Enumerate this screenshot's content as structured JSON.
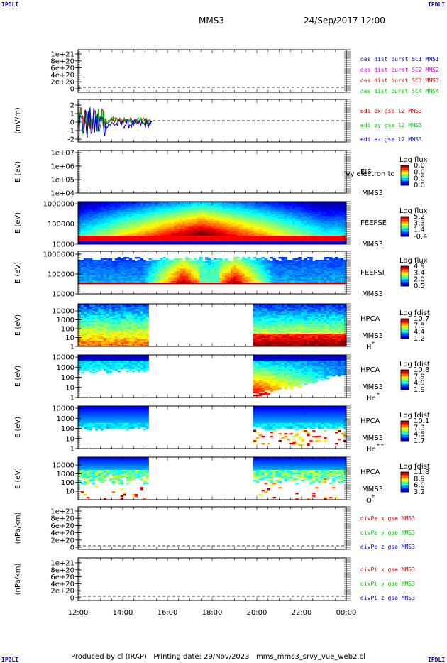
{
  "corner_label": "IPDLI",
  "header": {
    "spacecraft": "MMS3",
    "datetime": "24/Sep/2017 12:00"
  },
  "footer": {
    "produced_by": "Produced by cl (IRAP)",
    "printing_date": "Printing date: 29/Nov/2023",
    "script_name": "mms_mms3_srvy_vue_web2.cl"
  },
  "colors": {
    "red": "#cc0000",
    "magenta": "#cc00cc",
    "green": "#00cc00",
    "blue": "#0000cc",
    "frame": "#000000"
  },
  "chart_data": [
    {
      "type": "line",
      "id": "des-dist",
      "ytick_labels": [
        "1e+21",
        "8e+20",
        "6e+20",
        "4e+20",
        "2e+20",
        "0"
      ],
      "legend": [
        {
          "name": "des dist burst SC1 MMS1",
          "color": "#0000cc"
        },
        {
          "name": "des dist burst SC2 MMS2",
          "color": "#cc00cc"
        },
        {
          "name": "des dist burst SC3 MMS3",
          "color": "#cc0000"
        },
        {
          "name": "des dist burst SC4 MMS4",
          "color": "#00cc00"
        }
      ]
    },
    {
      "type": "line",
      "id": "edi",
      "ylabel": "(mV/m)",
      "ytick_labels": [
        "2",
        "1",
        "0",
        "-1",
        "-2"
      ],
      "ylim": [
        -2.5,
        2.5
      ],
      "legend": [
        {
          "name": "edi ex gse l2 MMS3",
          "color": "#cc0000"
        },
        {
          "name": "edi ey gse l2 MMS3",
          "color": "#00cc00"
        },
        {
          "name": "edi ez gse l2 MMS3",
          "color": "#0000cc"
        }
      ],
      "active_range_hours": [
        12.0,
        15.3
      ]
    },
    {
      "type": "heatmap",
      "id": "eis",
      "ylabel": "E (eV)",
      "ytick_labels": [
        "1e+07",
        "1e+06",
        "1e+05",
        "1e+04"
      ],
      "side_labels": [
        "EIS",
        "MMS3"
      ],
      "overlay_text": "l'vy electron to",
      "colorbar_title": "Log flux",
      "colorbar_ticks": [
        "0.0",
        "0.0",
        "0.0",
        "0.0"
      ],
      "model": "empty"
    },
    {
      "type": "heatmap",
      "id": "feepse",
      "ylabel": "E (eV)",
      "ytick_labels": [
        "1000000",
        "100000",
        "10000"
      ],
      "side_labels": [
        "FEEPSE",
        "MMS3"
      ],
      "colorbar_title": "Log flux",
      "colorbar_ticks": [
        "5.2",
        "3.3",
        "1.4",
        "-0.4"
      ],
      "model": "feepse"
    },
    {
      "type": "heatmap",
      "id": "feepsi",
      "ylabel": "E (eV)",
      "ytick_labels": [
        "1000000",
        "100000",
        "10000"
      ],
      "side_labels": [
        "FEEPSI",
        "MMS3"
      ],
      "colorbar_title": "Log flux",
      "colorbar_ticks": [
        "4.9",
        "3.4",
        "2.0",
        "0.5"
      ],
      "model": "feepsi"
    },
    {
      "type": "heatmap",
      "id": "hpca-h",
      "ylabel": "E (eV)",
      "ytick_labels": [
        "10000",
        "1000",
        "100",
        "10",
        "1"
      ],
      "side_labels": [
        "HPCA",
        "MMS3"
      ],
      "species": "H",
      "species_charge": "+",
      "colorbar_title": "Log fdist",
      "colorbar_ticks": [
        "10.7",
        "7.5",
        "4.4",
        "1.2"
      ],
      "data_windows_hours": [
        [
          12.0,
          15.2
        ],
        [
          19.8,
          24.0
        ]
      ],
      "model": "hpca-h"
    },
    {
      "type": "heatmap",
      "id": "hpca-he",
      "ylabel": "E (eV)",
      "ytick_labels": [
        "10000",
        "1000",
        "100",
        "10",
        "1"
      ],
      "side_labels": [
        "HPCA",
        "MMS3"
      ],
      "species": "He",
      "species_charge": "+",
      "colorbar_title": "Log fdist",
      "colorbar_ticks": [
        "10.8",
        "7.9",
        "4.9",
        "1.9"
      ],
      "data_windows_hours": [
        [
          12.0,
          15.2
        ],
        [
          19.8,
          24.0
        ]
      ],
      "model": "hpca-he"
    },
    {
      "type": "heatmap",
      "id": "hpca-he2",
      "ylabel": "E (eV)",
      "ytick_labels": [
        "10000",
        "1000",
        "100",
        "10",
        "1"
      ],
      "side_labels": [
        "HPCA",
        "MMS3"
      ],
      "species": "He",
      "species_charge": "++",
      "colorbar_title": "Log fdist",
      "colorbar_ticks": [
        "10.1",
        "7.3",
        "4.5",
        "1.7"
      ],
      "data_windows_hours": [
        [
          12.0,
          15.2
        ],
        [
          19.8,
          24.0
        ]
      ],
      "model": "hpca-he2"
    },
    {
      "type": "heatmap",
      "id": "hpca-o",
      "ylabel": "E (eV)",
      "ytick_labels": [
        "10000",
        "1000",
        "100",
        "10"
      ],
      "side_labels": [
        "HPCA",
        "MMS3"
      ],
      "species": "O",
      "species_charge": "+",
      "colorbar_title": "Log fdist",
      "colorbar_ticks": [
        "11.8",
        "8.9",
        "6.0",
        "3.2"
      ],
      "data_windows_hours": [
        [
          12.0,
          15.2
        ],
        [
          19.8,
          24.0
        ]
      ],
      "model": "hpca-o"
    },
    {
      "type": "line",
      "id": "divpe",
      "ylabel": "(nPa/km)",
      "ytick_labels": [
        "1e+21",
        "8e+20",
        "6e+20",
        "4e+20",
        "2e+20",
        "0"
      ],
      "legend": [
        {
          "name": "divPe x gse MMS3",
          "color": "#cc0000"
        },
        {
          "name": "divPe y gse MMS3",
          "color": "#00cc00"
        },
        {
          "name": "divPe z gse MMS3",
          "color": "#0000cc"
        }
      ]
    },
    {
      "type": "line",
      "id": "divpi",
      "ylabel": "(nPa/km)",
      "ytick_labels": [
        "1e+21",
        "8e+20",
        "6e+20",
        "4e+20",
        "2e+20",
        "0"
      ],
      "legend": [
        {
          "name": "divPi x gse MMS3",
          "color": "#cc0000"
        },
        {
          "name": "divPi y gse MMS3",
          "color": "#00cc00"
        },
        {
          "name": "divPi z gse MMS3",
          "color": "#0000cc"
        }
      ]
    }
  ],
  "x_axis": {
    "tick_labels": [
      "12:00",
      "14:00",
      "16:00",
      "18:00",
      "20:00",
      "22:00",
      "00:00"
    ],
    "range_hours": [
      12,
      24
    ]
  }
}
